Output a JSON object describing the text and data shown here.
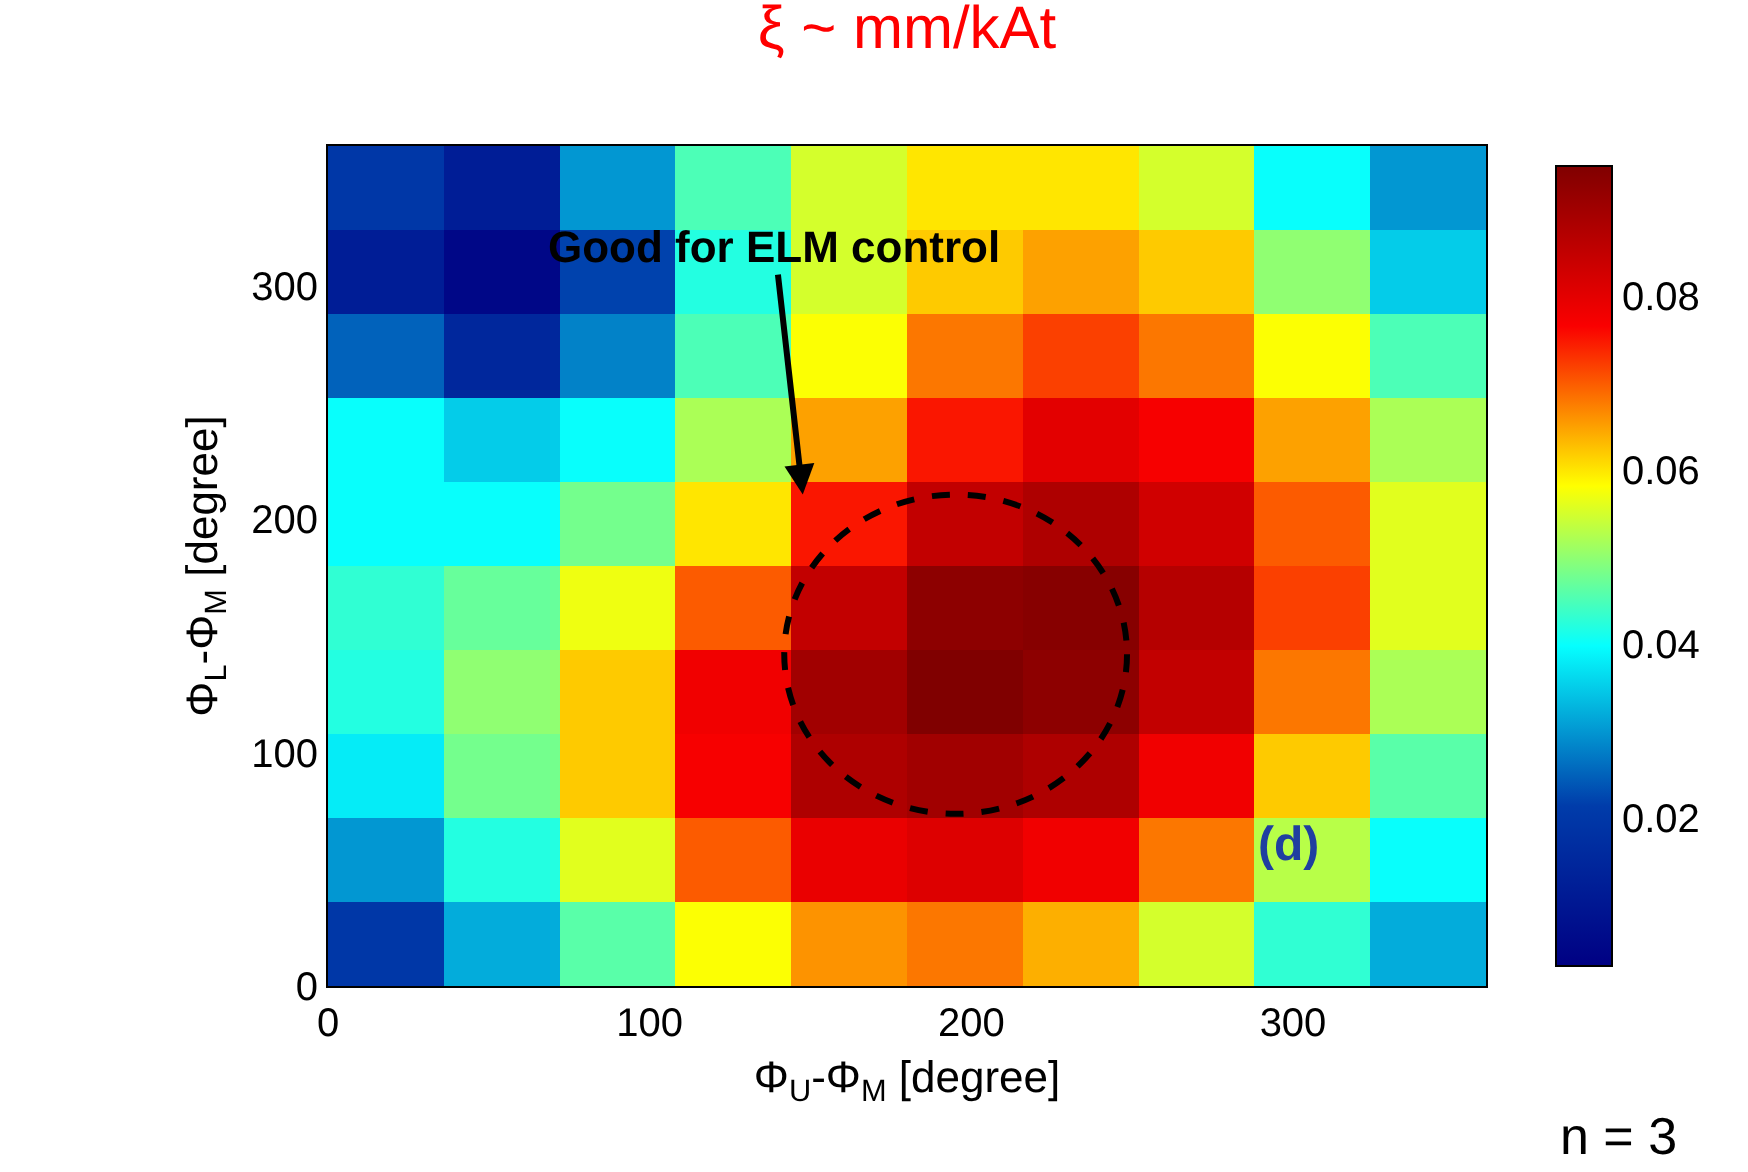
{
  "chart_data": {
    "type": "heatmap",
    "title": "ξ ~ mm/kAt",
    "xlabel": "Φ$_{U}$-Φ$_{M}$ [degree]",
    "ylabel": "Φ$_{L}$-Φ$_{M}$ [degree]",
    "x": [
      18,
      54,
      90,
      126,
      162,
      198,
      234,
      270,
      306,
      342
    ],
    "cells": [
      [
        0.02,
        0.012,
        0.03,
        0.045,
        0.055,
        0.06,
        0.06,
        0.055,
        0.04,
        0.03
      ],
      [
        0.012,
        0.005,
        0.022,
        0.042,
        0.055,
        0.062,
        0.065,
        0.062,
        0.05,
        0.035
      ],
      [
        0.025,
        0.015,
        0.028,
        0.045,
        0.058,
        0.068,
        0.072,
        0.068,
        0.058,
        0.045
      ],
      [
        0.04,
        0.035,
        0.04,
        0.052,
        0.065,
        0.075,
        0.08,
        0.077,
        0.065,
        0.052
      ],
      [
        0.04,
        0.04,
        0.048,
        0.06,
        0.075,
        0.085,
        0.088,
        0.083,
        0.07,
        0.056
      ],
      [
        0.043,
        0.047,
        0.057,
        0.07,
        0.085,
        0.093,
        0.094,
        0.087,
        0.072,
        0.056
      ],
      [
        0.042,
        0.05,
        0.062,
        0.078,
        0.09,
        0.095,
        0.093,
        0.085,
        0.068,
        0.052
      ],
      [
        0.038,
        0.048,
        0.062,
        0.077,
        0.088,
        0.09,
        0.088,
        0.078,
        0.062,
        0.046
      ],
      [
        0.03,
        0.042,
        0.056,
        0.07,
        0.079,
        0.081,
        0.078,
        0.068,
        0.053,
        0.04
      ],
      [
        0.02,
        0.032,
        0.046,
        0.058,
        0.066,
        0.068,
        0.064,
        0.055,
        0.043,
        0.032
      ]
    ],
    "xlim": [
      0,
      360
    ],
    "xticks": [
      0,
      100,
      200,
      300
    ],
    "ylim": [
      0,
      360
    ],
    "yticks": [
      0,
      100,
      200,
      300
    ],
    "clim": [
      0.003,
      0.095
    ],
    "cticks": [
      0.02,
      0.04,
      0.06,
      0.08
    ],
    "annotations": [
      "(d)",
      "n = 3",
      "Good for ELM control"
    ]
  }
}
